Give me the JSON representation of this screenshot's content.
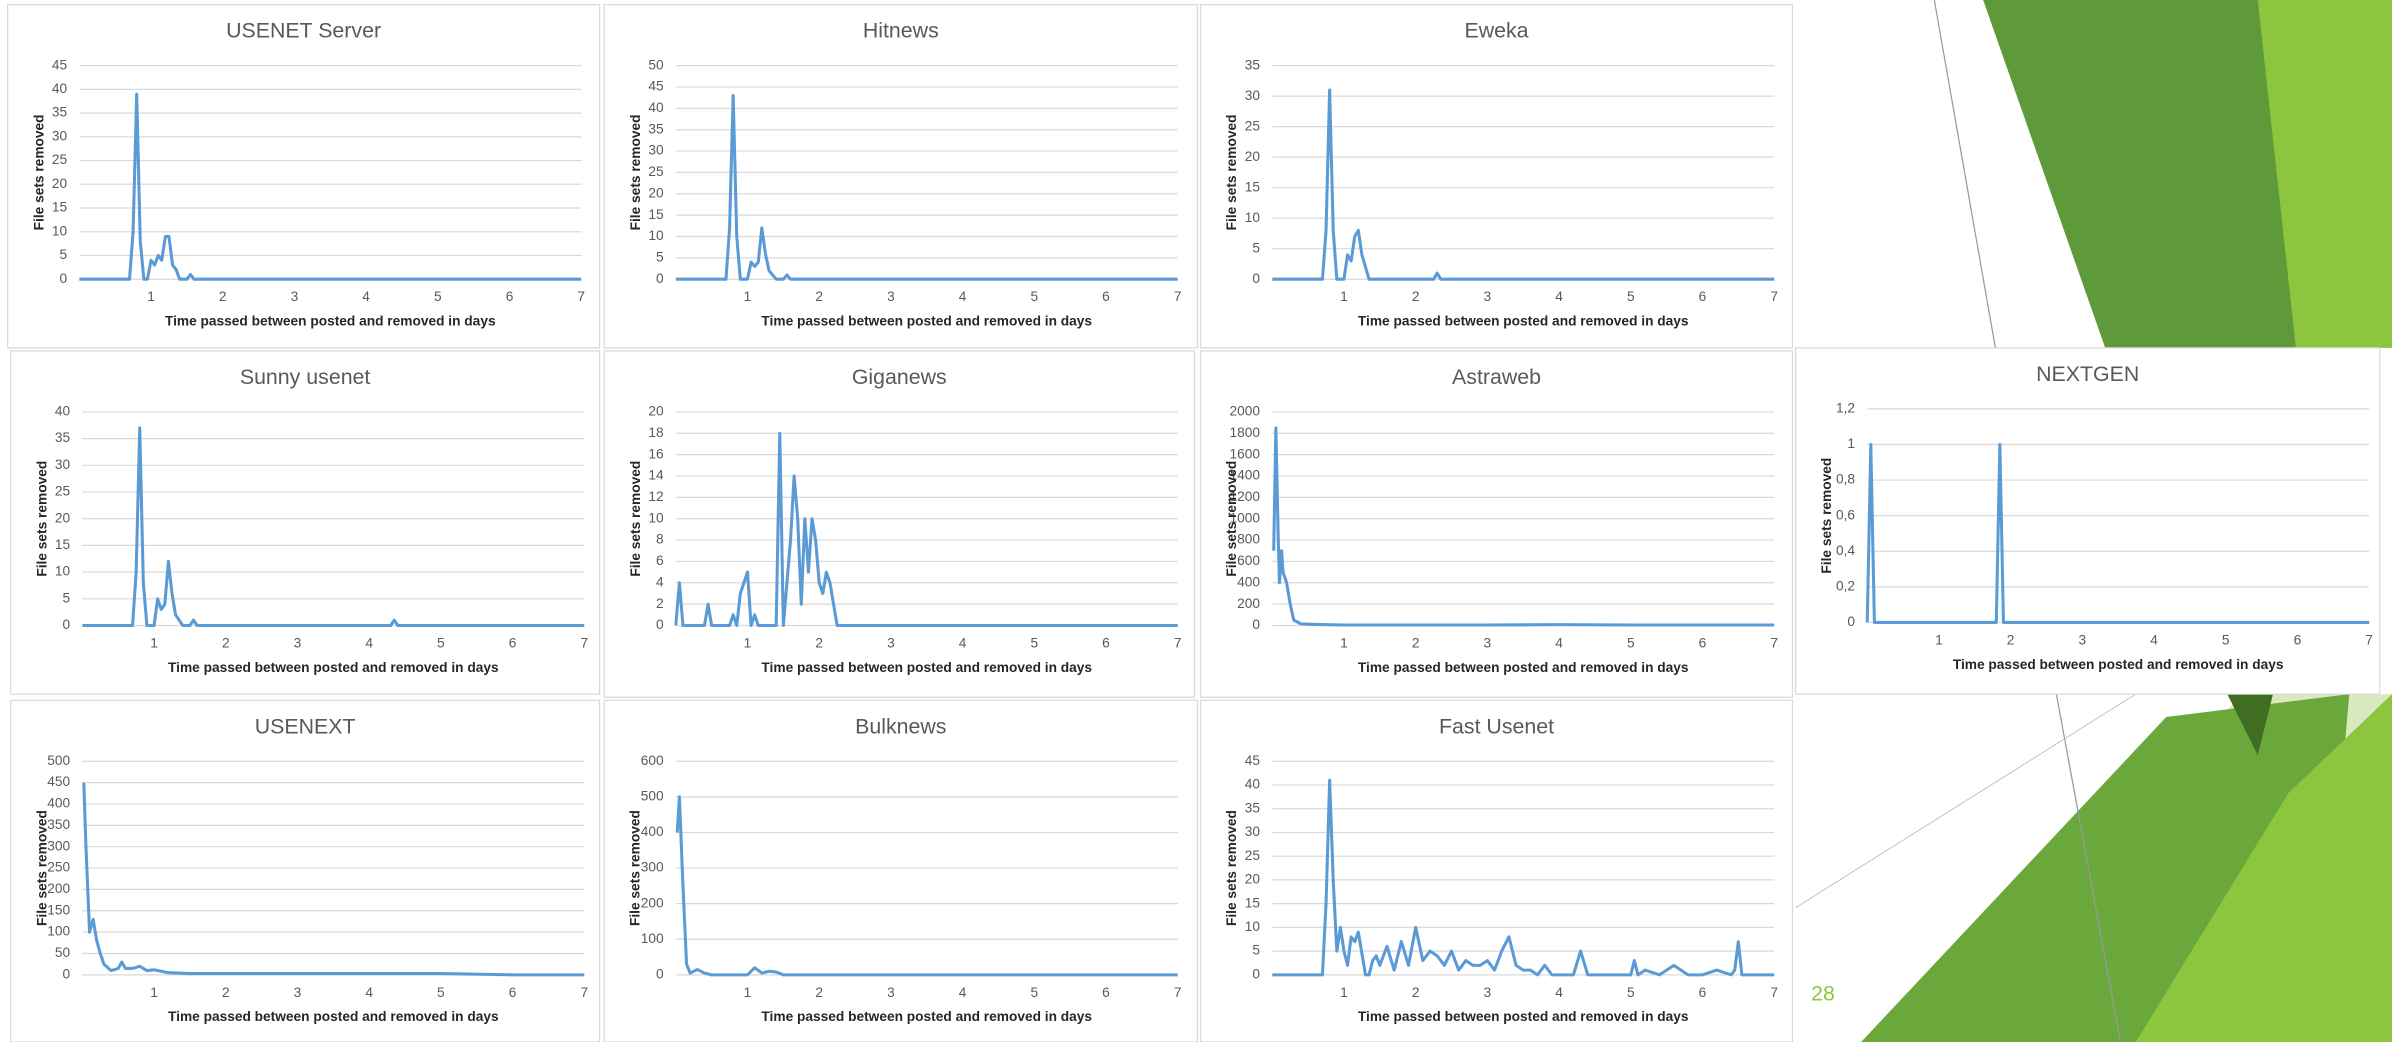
{
  "chart_data": [
    {
      "type": "line",
      "title": "USENET Server",
      "xlabel": "Time passed between posted and removed in days",
      "ylabel": "File sets removed",
      "x": [
        0,
        0.7,
        0.75,
        0.8,
        0.85,
        0.9,
        0.95,
        1.0,
        1.05,
        1.1,
        1.15,
        1.2,
        1.25,
        1.3,
        1.35,
        1.4,
        1.5,
        1.55,
        1.6,
        7
      ],
      "series": [
        {
          "color": "#5b9bd5",
          "values": [
            0,
            0,
            10,
            39,
            8,
            0,
            0,
            4,
            3,
            5,
            4,
            9,
            9,
            3,
            2,
            0,
            0,
            1,
            0,
            0
          ]
        }
      ],
      "xlim": [
        0,
        7
      ],
      "xticks": [
        1,
        2,
        3,
        4,
        5,
        6,
        7
      ],
      "ylim": [
        0,
        45
      ],
      "yticks": [
        0,
        5,
        10,
        15,
        20,
        25,
        30,
        35,
        40,
        45
      ],
      "grid": true
    },
    {
      "type": "line",
      "title": "Hitnews",
      "xlabel": "Time passed between posted and removed in days",
      "ylabel": "File sets removed",
      "x": [
        0,
        0.7,
        0.75,
        0.8,
        0.85,
        0.9,
        1.0,
        1.05,
        1.1,
        1.15,
        1.2,
        1.25,
        1.3,
        1.4,
        1.5,
        1.55,
        1.6,
        7
      ],
      "series": [
        {
          "color": "#5b9bd5",
          "values": [
            0,
            0,
            12,
            43,
            10,
            0,
            0,
            4,
            3,
            4,
            12,
            6,
            2,
            0,
            0,
            1,
            0,
            0
          ]
        }
      ],
      "xlim": [
        0,
        7
      ],
      "xticks": [
        1,
        2,
        3,
        4,
        5,
        6,
        7
      ],
      "ylim": [
        0,
        50
      ],
      "yticks": [
        0,
        5,
        10,
        15,
        20,
        25,
        30,
        35,
        40,
        45,
        50
      ],
      "grid": true
    },
    {
      "type": "line",
      "title": "Eweka",
      "xlabel": "Time passed between posted and removed in days",
      "ylabel": "File sets removed",
      "x": [
        0,
        0.7,
        0.75,
        0.8,
        0.85,
        0.9,
        1.0,
        1.05,
        1.1,
        1.15,
        1.2,
        1.25,
        1.3,
        1.35,
        2.2,
        2.25,
        2.3,
        2.35,
        7
      ],
      "series": [
        {
          "color": "#5b9bd5",
          "values": [
            0,
            0,
            8,
            31,
            8,
            0,
            0,
            4,
            3,
            7,
            8,
            4,
            2,
            0,
            0,
            0,
            1,
            0,
            0
          ]
        }
      ],
      "xlim": [
        0,
        7
      ],
      "xticks": [
        1,
        2,
        3,
        4,
        5,
        6,
        7
      ],
      "ylim": [
        0,
        35
      ],
      "yticks": [
        0,
        5,
        10,
        15,
        20,
        25,
        30,
        35
      ],
      "grid": true
    },
    {
      "type": "line",
      "title": "Sunny usenet",
      "xlabel": "Time passed between posted and removed in days",
      "ylabel": "File sets removed",
      "x": [
        0,
        0.7,
        0.75,
        0.8,
        0.85,
        0.9,
        1.0,
        1.05,
        1.1,
        1.15,
        1.2,
        1.25,
        1.3,
        1.4,
        1.5,
        1.55,
        1.6,
        4.3,
        4.35,
        4.4,
        7
      ],
      "series": [
        {
          "color": "#5b9bd5",
          "values": [
            0,
            0,
            10,
            37,
            8,
            0,
            0,
            5,
            3,
            4,
            12,
            6,
            2,
            0,
            0,
            1,
            0,
            0,
            1,
            0,
            0
          ]
        }
      ],
      "xlim": [
        0,
        7
      ],
      "xticks": [
        1,
        2,
        3,
        4,
        5,
        6,
        7
      ],
      "ylim": [
        0,
        40
      ],
      "yticks": [
        0,
        5,
        10,
        15,
        20,
        25,
        30,
        35,
        40
      ],
      "grid": true
    },
    {
      "type": "line",
      "title": "Giganews",
      "xlabel": "Time passed between posted and removed in days",
      "ylabel": "File sets removed",
      "x": [
        0,
        0.05,
        0.1,
        0.4,
        0.45,
        0.5,
        0.75,
        0.8,
        0.85,
        0.9,
        0.95,
        1.0,
        1.05,
        1.1,
        1.15,
        1.35,
        1.4,
        1.45,
        1.5,
        1.55,
        1.6,
        1.65,
        1.7,
        1.75,
        1.8,
        1.85,
        1.9,
        1.95,
        2.0,
        2.05,
        2.1,
        2.15,
        2.2,
        2.25,
        7
      ],
      "series": [
        {
          "color": "#5b9bd5",
          "values": [
            0,
            4,
            0,
            0,
            2,
            0,
            0,
            1,
            0,
            3,
            4,
            5,
            0,
            1,
            0,
            0,
            0,
            18,
            0,
            4,
            8,
            14,
            10,
            2,
            10,
            5,
            10,
            8,
            4,
            3,
            5,
            4,
            2,
            0,
            0
          ]
        }
      ],
      "xlim": [
        0,
        7
      ],
      "xticks": [
        1,
        2,
        3,
        4,
        5,
        6,
        7
      ],
      "ylim": [
        0,
        20
      ],
      "yticks": [
        0,
        2,
        4,
        6,
        8,
        10,
        12,
        14,
        16,
        18,
        20
      ],
      "grid": true
    },
    {
      "type": "line",
      "title": "Astraweb",
      "xlabel": "Time passed between posted and removed in days",
      "ylabel": "File sets removed",
      "x": [
        0.02,
        0.05,
        0.08,
        0.1,
        0.13,
        0.15,
        0.2,
        0.25,
        0.3,
        0.4,
        0.6,
        1,
        2,
        3,
        4,
        5,
        6,
        7
      ],
      "series": [
        {
          "color": "#5b9bd5",
          "values": [
            700,
            1850,
            900,
            400,
            700,
            500,
            400,
            200,
            50,
            15,
            10,
            5,
            5,
            5,
            8,
            5,
            5,
            5
          ]
        }
      ],
      "xlim": [
        0,
        7
      ],
      "xticks": [
        1,
        2,
        3,
        4,
        5,
        6,
        7
      ],
      "ylim": [
        0,
        2000
      ],
      "yticks": [
        0,
        200,
        400,
        600,
        800,
        1000,
        1200,
        1400,
        1600,
        1800,
        2000
      ],
      "grid": true
    },
    {
      "type": "line",
      "title": "NEXTGEN",
      "xlabel": "Time passed between posted and removed in days",
      "ylabel": "File sets removed",
      "x": [
        0,
        0.05,
        0.1,
        1.8,
        1.85,
        1.9,
        7
      ],
      "series": [
        {
          "color": "#5b9bd5",
          "values": [
            0,
            1,
            0,
            0,
            1,
            0,
            0
          ]
        }
      ],
      "xlim": [
        0,
        7
      ],
      "xticks": [
        1,
        2,
        3,
        4,
        5,
        6,
        7
      ],
      "ylim": [
        0,
        1.2
      ],
      "yticks": [
        0,
        {
          "value": 0.2,
          "label": "0,2"
        },
        {
          "value": 0.4,
          "label": "0,4"
        },
        {
          "value": 0.6,
          "label": "0,6"
        },
        {
          "value": 0.8,
          "label": "0,8"
        },
        1,
        {
          "value": 1.2,
          "label": "1,2"
        }
      ],
      "grid": true
    },
    {
      "type": "line",
      "title": "USENEXT",
      "xlabel": "Time passed between posted and removed in days",
      "ylabel": "File sets removed",
      "x": [
        0.02,
        0.05,
        0.1,
        0.15,
        0.2,
        0.25,
        0.3,
        0.4,
        0.5,
        0.55,
        0.6,
        0.7,
        0.8,
        0.9,
        1,
        1.2,
        1.5,
        2,
        3,
        4,
        5,
        6,
        7
      ],
      "series": [
        {
          "color": "#5b9bd5",
          "values": [
            450,
            300,
            100,
            130,
            80,
            50,
            25,
            10,
            15,
            30,
            15,
            15,
            20,
            10,
            12,
            5,
            3,
            3,
            3,
            3,
            3,
            0,
            0
          ]
        }
      ],
      "xlim": [
        0,
        7
      ],
      "xticks": [
        1,
        2,
        3,
        4,
        5,
        6,
        7
      ],
      "ylim": [
        0,
        500
      ],
      "yticks": [
        0,
        50,
        100,
        150,
        200,
        250,
        300,
        350,
        400,
        450,
        500
      ],
      "grid": true
    },
    {
      "type": "line",
      "title": "Bulknews",
      "xlabel": "Time passed between posted and removed in days",
      "ylabel": "File sets removed",
      "x": [
        0.02,
        0.05,
        0.1,
        0.15,
        0.2,
        0.3,
        0.4,
        0.5,
        1.0,
        1.1,
        1.2,
        1.3,
        1.4,
        1.5,
        2,
        7
      ],
      "series": [
        {
          "color": "#5b9bd5",
          "values": [
            400,
            500,
            250,
            30,
            5,
            15,
            5,
            0,
            0,
            20,
            5,
            10,
            8,
            0,
            0,
            0
          ]
        }
      ],
      "xlim": [
        0,
        7
      ],
      "xticks": [
        1,
        2,
        3,
        4,
        5,
        6,
        7
      ],
      "ylim": [
        0,
        600
      ],
      "yticks": [
        0,
        100,
        200,
        300,
        400,
        500,
        600
      ],
      "grid": true
    },
    {
      "type": "line",
      "title": "Fast Usenet",
      "xlabel": "Time passed between posted and removed in days",
      "ylabel": "File sets removed",
      "x": [
        0,
        0.7,
        0.75,
        0.8,
        0.85,
        0.9,
        0.95,
        1.0,
        1.05,
        1.1,
        1.15,
        1.2,
        1.3,
        1.35,
        1.4,
        1.45,
        1.5,
        1.6,
        1.7,
        1.8,
        1.9,
        2.0,
        2.1,
        2.2,
        2.3,
        2.4,
        2.5,
        2.6,
        2.7,
        2.8,
        2.9,
        3.0,
        3.1,
        3.2,
        3.3,
        3.4,
        3.5,
        3.6,
        3.7,
        3.8,
        3.9,
        4.0,
        4.2,
        4.3,
        4.4,
        4.6,
        5.0,
        5.05,
        5.1,
        5.2,
        5.4,
        5.5,
        5.6,
        5.8,
        6.0,
        6.2,
        6.4,
        6.45,
        6.5,
        6.55,
        7
      ],
      "series": [
        {
          "color": "#5b9bd5",
          "values": [
            0,
            0,
            15,
            41,
            20,
            5,
            10,
            5,
            2,
            8,
            7,
            9,
            0,
            0,
            3,
            4,
            2,
            6,
            1,
            7,
            2,
            10,
            3,
            5,
            4,
            2,
            5,
            1,
            3,
            2,
            2,
            3,
            1,
            5,
            8,
            2,
            1,
            1,
            0,
            2,
            0,
            0,
            0,
            5,
            0,
            0,
            0,
            3,
            0,
            1,
            0,
            1,
            2,
            0,
            0,
            1,
            0,
            1,
            7,
            0,
            0
          ]
        }
      ],
      "xlim": [
        0,
        7
      ],
      "xticks": [
        1,
        2,
        3,
        4,
        5,
        6,
        7
      ],
      "ylim": [
        0,
        45
      ],
      "yticks": [
        0,
        5,
        10,
        15,
        20,
        25,
        30,
        35,
        40,
        45
      ],
      "grid": true
    }
  ],
  "slide_number": "28"
}
